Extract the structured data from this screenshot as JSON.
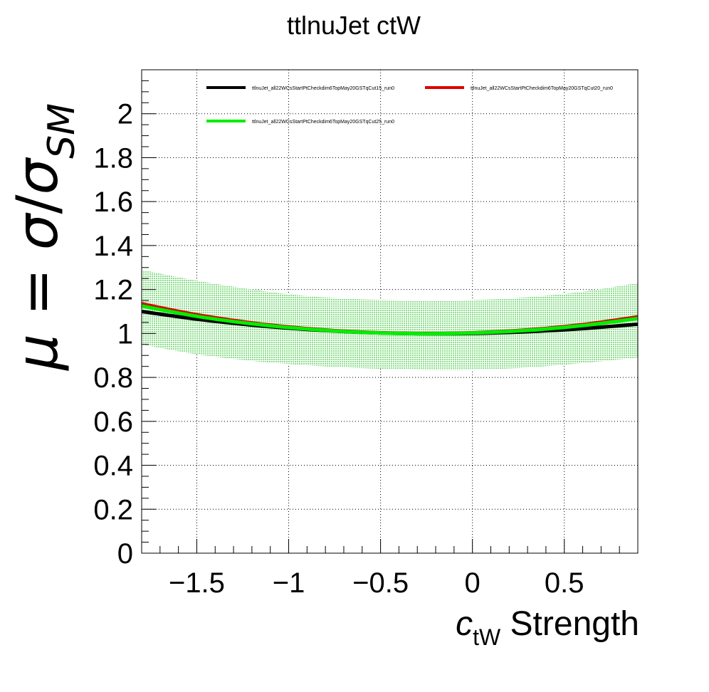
{
  "chart_data": {
    "type": "line",
    "title": "ttlnuJet ctW",
    "xlabel": {
      "main": "c",
      "sub": "tW",
      "suffix": " Strength"
    },
    "ylabel": {
      "mu": "μ",
      "eq": " = ",
      "sigma": "σ",
      "slash": "/",
      "sigma2": "σ",
      "sub": "SM"
    },
    "xlim": [
      -1.8,
      0.9
    ],
    "ylim": [
      0,
      2.2
    ],
    "x_ticks": [
      -1.5,
      -1,
      -0.5,
      0,
      0.5
    ],
    "x_tick_labels": [
      "−1.5",
      "−1",
      "−0.5",
      "0",
      "0.5"
    ],
    "y_ticks": [
      0,
      0.2,
      0.4,
      0.6,
      0.8,
      1,
      1.2,
      1.4,
      1.6,
      1.8,
      2
    ],
    "y_tick_labels": [
      "0",
      "0.2",
      "0.4",
      "0.6",
      "0.8",
      "1",
      "1.2",
      "1.4",
      "1.6",
      "1.8",
      "2"
    ],
    "grid": true,
    "legend_position": "top",
    "x": [
      -1.8,
      -1.5,
      -1.2,
      -0.9,
      -0.6,
      -0.3,
      0,
      0.3,
      0.6,
      0.9
    ],
    "series": [
      {
        "name": "ttlnuJet_all22WCsStartPtCheckdim6TopMay20GSTqCut15_run0",
        "color": "#000000",
        "values": [
          1.1,
          1.065,
          1.038,
          1.018,
          1.005,
          0.999,
          1.0,
          1.008,
          1.022,
          1.042
        ]
      },
      {
        "name": "ttlnuJet_all22WCsStartPtCheckdim6TopMay20GSTqCut20_run0",
        "color": "#dd0000",
        "values": [
          1.135,
          1.085,
          1.048,
          1.022,
          1.006,
          1.0,
          1.003,
          1.016,
          1.04,
          1.075
        ]
      },
      {
        "name": "ttlnuJet_all22WCsStartPtCheckdim6TopMay20GSTqCut25_run0",
        "color": "#00ee00",
        "values": [
          1.125,
          1.078,
          1.044,
          1.02,
          1.005,
          0.999,
          1.002,
          1.014,
          1.036,
          1.068
        ]
      }
    ],
    "band": {
      "color": "#2ec02e",
      "upper": [
        1.29,
        1.24,
        1.2,
        1.17,
        1.155,
        1.15,
        1.152,
        1.165,
        1.19,
        1.23
      ],
      "lower": [
        0.95,
        0.905,
        0.875,
        0.855,
        0.842,
        0.835,
        0.835,
        0.845,
        0.865,
        0.89
      ]
    }
  }
}
